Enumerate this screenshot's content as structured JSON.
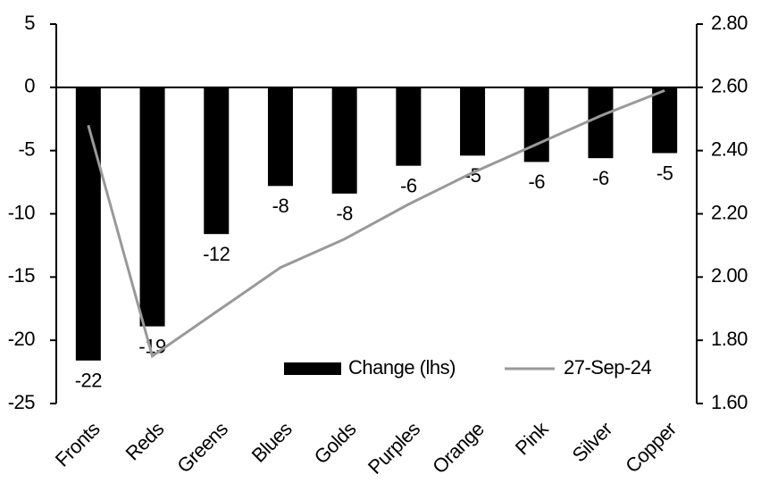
{
  "chart_data": {
    "type": "bar",
    "categories": [
      "Fronts",
      "Reds",
      "Greens",
      "Blues",
      "Golds",
      "Purples",
      "Orange",
      "Pink",
      "Silver",
      "Copper"
    ],
    "series": [
      {
        "name": "Change (lhs)",
        "type": "bar",
        "color": "#000000",
        "values": [
          -21.6,
          -18.9,
          -11.6,
          -7.8,
          -8.4,
          -6.2,
          -5.4,
          -5.9,
          -5.6,
          -5.2
        ],
        "value_labels": [
          "-22",
          "-19",
          "-12",
          "-8",
          "-8",
          "-6",
          "-5",
          "-6",
          "-6",
          "-5"
        ]
      },
      {
        "name": "27-Sep-24",
        "type": "line",
        "axis": "y2",
        "color": "#999999",
        "values": [
          2.48,
          1.75,
          1.89,
          2.03,
          2.12,
          2.23,
          2.33,
          2.42,
          2.51,
          2.59
        ]
      }
    ],
    "ylim": [
      -25,
      5
    ],
    "yticks": [
      5,
      0,
      -5,
      -10,
      -15,
      -20,
      -25
    ],
    "y2lim": [
      1.6,
      2.8
    ],
    "y2ticks": [
      {
        "value": 2.8,
        "label": "2.80"
      },
      {
        "value": 2.6,
        "label": "2.60"
      },
      {
        "value": 2.4,
        "label": "2.40"
      },
      {
        "value": 2.2,
        "label": "2.20"
      },
      {
        "value": 2.0,
        "label": "2.00"
      },
      {
        "value": 1.8,
        "label": "1.80"
      },
      {
        "value": 1.6,
        "label": "1.60"
      }
    ],
    "grid": false,
    "legend": "bottom-right"
  }
}
